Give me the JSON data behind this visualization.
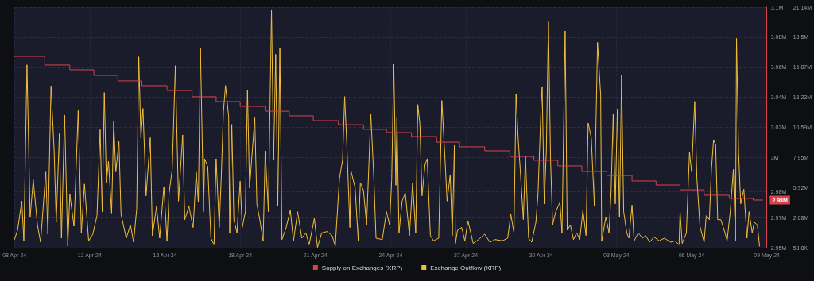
{
  "chart_data": {
    "type": "line",
    "legend": "bottom",
    "grid": true,
    "marker": "none",
    "xlim": [
      "--04-09T00:00",
      "--05-09T00:00"
    ],
    "xticks": [
      {
        "value": "--04-09T00:00",
        "label": "08 Apr 24"
      },
      {
        "value": "--04-12T00:00",
        "label": "12 Apr 24"
      },
      {
        "value": "--04-15T00:00",
        "label": "15 Apr 24"
      },
      {
        "value": "--04-18T00:00",
        "label": "18 Apr 24"
      },
      {
        "value": "--04-21T00:00",
        "label": "21 Apr 24"
      },
      {
        "value": "--04-24T00:00",
        "label": "24 Apr 24"
      },
      {
        "value": "--04-27T00:00",
        "label": "27 Apr 24"
      },
      {
        "value": "--04-30T00:00",
        "label": "30 Apr 24"
      },
      {
        "value": "--05-03T00:00",
        "label": "03 May 24"
      },
      {
        "value": "--05-06T00:00",
        "label": "06 May 24"
      },
      {
        "value": "--05-09T00:00",
        "label": "09 May 24"
      }
    ],
    "ylim": [
      2950000,
      3100000
    ],
    "yticks": [
      {
        "value": 2950000,
        "label": "2.95M"
      },
      {
        "value": 2968750,
        "label": "2.97M"
      },
      {
        "value": 2985000,
        "label": "2.98M"
      },
      {
        "value": 3006250,
        "label": "3M"
      },
      {
        "value": 3025000,
        "label": "3.02M"
      },
      {
        "value": 3043750,
        "label": "3.04M"
      },
      {
        "value": 3062500,
        "label": "3.06M"
      },
      {
        "value": 3081250,
        "label": "3.08M"
      },
      {
        "value": 3100000,
        "label": "3.1M"
      }
    ],
    "y2lim": [
      53800,
      21140000
    ],
    "y2ticks": [
      {
        "value": 53800,
        "label": "53.8K"
      },
      {
        "value": 2685000,
        "label": "2.68M"
      },
      {
        "value": 5325000,
        "label": "5.32M"
      },
      {
        "value": 7955000,
        "label": "7.95M"
      },
      {
        "value": 10595000,
        "label": "10.59M"
      },
      {
        "value": 13232700,
        "label": "13.23M"
      },
      {
        "value": 15868500,
        "label": "15.87M"
      },
      {
        "value": 18504200,
        "label": "18.5M"
      },
      {
        "value": 21140000,
        "label": "21.14M"
      }
    ],
    "annotations": [
      {
        "text": "2.98M",
        "x": "--05-08T20:00",
        "y": 2979700
      }
    ],
    "series": [
      {
        "name": "Supply on Exchanges (XRP)",
        "type": "step",
        "color": "#d9434e",
        "x": [
          "--04-09T00:00",
          "--04-10T05:00",
          "--04-11T05:00",
          "--04-12T04:00",
          "--04-13T03:00",
          "--04-14T02:00",
          "--04-15T02:00",
          "--04-16T02:00",
          "--04-17T01:00",
          "--04-18T00:00",
          "--04-19T00:00",
          "--04-19T23:00",
          "--04-20T22:00",
          "--04-21T22:00",
          "--04-22T22:00",
          "--04-23T20:00",
          "--04-24T20:00",
          "--04-25T20:00",
          "--04-26T18:00",
          "--04-27T18:00",
          "--04-28T18:00",
          "--04-29T17:00",
          "--04-30T16:00",
          "--05-01T15:00",
          "--05-02T15:00",
          "--05-03T15:00",
          "--05-04T14:00",
          "--05-05T13:00",
          "--05-06T12:00",
          "--05-07T12:00",
          "--05-08T11:00",
          "--05-08T20:00"
        ],
        "values": [
          3069300,
          3063900,
          3060900,
          3057400,
          3054000,
          3051000,
          3048000,
          3044100,
          3041100,
          3038100,
          3035100,
          3032200,
          3029200,
          3026700,
          3023800,
          3021800,
          3019300,
          3015800,
          3012900,
          3010400,
          3006900,
          3004500,
          3001000,
          2997500,
          2995000,
          2991600,
          2989100,
          2986100,
          2982700,
          2980700,
          2979700,
          2979700
        ]
      },
      {
        "name": "Exchange Outflow (XRP)",
        "type": "line",
        "axis": "y2",
        "color": "#f2bf3a",
        "x": [
          "--04-09T00:00",
          "--04-09T03:00",
          "--04-09T07:00",
          "--04-09T09:00",
          "--04-09T12:00",
          "--04-09T15:00",
          "--04-09T18:00",
          "--04-09T22:00",
          "--04-10T01:00",
          "--04-10T06:00",
          "--04-10T08:00",
          "--04-10T11:00",
          "--04-10T14:00",
          "--04-10T16:00",
          "--04-10T19:00",
          "--04-10T21:00",
          "--04-11T00:00",
          "--04-11T03:00",
          "--04-11T05:00",
          "--04-11T09:00",
          "--04-11T13:00",
          "--04-11T16:00",
          "--04-11T19:00",
          "--04-11T23:00",
          "--04-12T03:00",
          "--04-12T07:00",
          "--04-12T10:00",
          "--04-12T12:00",
          "--04-12T14:00",
          "--04-12T16:00",
          "--04-12T18:00",
          "--04-12T21:00",
          "--04-12T23:00",
          "--04-13T01:00",
          "--04-13T04:00",
          "--04-13T06:00",
          "--04-13T11:00",
          "--04-13T15:00",
          "--04-13T18:00",
          "--04-13T21:00",
          "--04-13T23:00",
          "--04-14T01:00",
          "--04-14T03:00",
          "--04-14T06:00",
          "--04-14T10:00",
          "--04-14T12:00",
          "--04-14T16:00",
          "--04-14T19:00",
          "--04-14T23:00",
          "--04-15T02:00",
          "--04-15T04:00",
          "--04-15T07:00",
          "--04-15T08:00",
          "--04-15T10:00",
          "--04-15T13:00",
          "--04-15T17:00",
          "--04-15T19:00",
          "--04-15T23:00",
          "--04-16T03:00",
          "--04-16T06:00",
          "--04-16T08:00",
          "--04-16T10:00",
          "--04-16T13:00",
          "--04-16T14:00",
          "--04-16T17:00",
          "--04-16T20:00",
          "--04-16T23:00",
          "--04-17T01:00",
          "--04-17T04:00",
          "--04-17T06:00",
          "--04-17T08:00",
          "--04-17T10:00",
          "--04-17T13:00",
          "--04-17T14:00",
          "--04-17T16:00",
          "--04-17T18:00",
          "--04-17T21:00",
          "--04-18T00:00",
          "--04-18T02:00",
          "--04-18T05:00",
          "--04-18T07:00",
          "--04-18T09:00",
          "--04-18T14:00",
          "--04-18T16:00",
          "--04-18T19:00",
          "--04-18T22:00",
          "--04-19T00:00",
          "--04-19T03:00",
          "--04-19T06:00",
          "--04-19T08:00",
          "--04-19T10:00",
          "--04-19T12:00",
          "--04-19T14:00",
          "--04-19T16:00",
          "--04-19T20:00",
          "--04-20T00:00",
          "--04-20T03:00",
          "--04-20T07:00",
          "--04-20T11:00",
          "--04-20T15:00",
          "--04-20T18:00",
          "--04-20T23:00",
          "--04-21T02:00",
          "--04-21T06:00",
          "--04-21T11:00",
          "--04-21T16:00",
          "--04-21T19:00",
          "--04-21T23:00",
          "--04-22T02:00",
          "--04-22T04:00",
          "--04-22T06:00",
          "--04-22T09:00",
          "--04-22T10:00",
          "--04-22T14:00",
          "--04-22T17:00",
          "--04-22T19:00",
          "--04-22T22:00",
          "--04-23T01:00",
          "--04-23T05:00",
          "--04-23T08:00",
          "--04-23T10:00",
          "--04-23T16:00",
          "--04-23T20:00",
          "--04-23T23:00",
          "--04-24T01:00",
          "--04-24T03:00",
          "--04-24T05:00",
          "--04-24T06:00",
          "--04-24T08:00",
          "--04-24T11:00",
          "--04-24T14:00",
          "--04-24T18:00",
          "--04-24T21:00",
          "--04-25T00:00",
          "--04-25T02:00",
          "--04-25T04:00",
          "--04-25T06:00",
          "--04-25T09:00",
          "--04-25T11:00",
          "--04-25T14:00",
          "--04-25T17:00",
          "--04-25T22:00",
          "--04-26T01:00",
          "--04-26T04:00",
          "--04-26T06:00",
          "--04-26T09:00",
          "--04-26T11:00",
          "--04-26T13:00",
          "--04-26T14:00",
          "--04-26T16:00",
          "--04-26T20:00",
          "--04-26T23:00",
          "--04-27T02:00",
          "--04-27T07:00",
          "--04-27T12:00",
          "--04-27T18:00",
          "--04-27T23:00",
          "--04-28T04:00",
          "--04-28T11:00",
          "--04-28T16:00",
          "--04-28T19:00",
          "--04-28T22:00",
          "--04-29T00:00",
          "--04-29T02:00",
          "--04-29T04:00",
          "--04-29T07:00",
          "--04-29T09:00",
          "--04-29T12:00",
          "--04-29T15:00",
          "--04-29T19:00",
          "--04-29T21:00",
          "--04-30T00:00",
          "--04-30T01:00",
          "--04-30T03:00",
          "--04-30T05:00",
          "--04-30T07:00",
          "--04-30T09:00",
          "--04-30T11:00",
          "--04-30T14:00",
          "--04-30T18:00",
          "--04-30T20:00",
          "--04-30T23:00",
          "--05-01T01:00",
          "--05-01T04:00",
          "--05-01T07:00",
          "--05-01T10:00",
          "--05-01T13:00",
          "--05-01T16:00",
          "--05-01T19:00",
          "--05-01T21:00",
          "--05-02T00:00",
          "--05-02T03:00",
          "--05-02T06:00",
          "--05-02T09:00",
          "--05-02T10:00",
          "--05-02T14:00",
          "--05-02T17:00",
          "--05-02T19:00",
          "--05-02T21:00",
          "--05-02T23:00",
          "--05-03T01:00",
          "--05-03T03:00",
          "--05-03T05:00",
          "--05-03T07:00",
          "--05-03T10:00",
          "--05-03T12:00",
          "--05-03T15:00",
          "--05-03T17:00",
          "--05-03T21:00",
          "--05-04T01:00",
          "--05-04T04:00",
          "--05-04T08:00",
          "--05-04T12:00",
          "--05-04T17:00",
          "--05-04T22:00",
          "--05-05T04:00",
          "--05-05T08:00",
          "--05-05T12:00",
          "--05-05T13:00",
          "--05-05T15:00",
          "--05-05T19:00",
          "--05-05T22:00",
          "--05-06T00:00",
          "--05-06T03:00",
          "--05-06T05:00",
          "--05-06T08:00",
          "--05-06T12:00",
          "--05-06T14:00",
          "--05-06T17:00",
          "--05-06T19:00",
          "--05-06T21:00",
          "--05-06T23:00",
          "--05-07T01:00",
          "--05-07T04:00",
          "--05-07T08:00",
          "--05-07T10:00",
          "--05-07T13:00",
          "--05-07T16:00",
          "--05-07T18:00",
          "--05-07T19:00",
          "--05-07T21:00",
          "--05-07T23:00",
          "--05-08T02:00",
          "--05-08T05:00",
          "--05-08T07:00",
          "--05-08T10:00",
          "--05-08T12:00",
          "--05-08T15:00",
          "--05-08T17:00"
        ],
        "values": [
          770000,
          1590000,
          4140000,
          660000,
          16080000,
          2740000,
          5990000,
          2050000,
          540000,
          6690000,
          1240000,
          14230000,
          8540000,
          2280000,
          10050000,
          890000,
          11680000,
          190000,
          4720000,
          1930000,
          12070000,
          1350000,
          5640000,
          660000,
          1240000,
          2860000,
          10400000,
          3210000,
          13650000,
          5760000,
          7620000,
          3090000,
          11100000,
          6690000,
          9360000,
          2980000,
          890000,
          2050000,
          540000,
          3440000,
          16780000,
          9700000,
          12260000,
          4600000,
          9700000,
          1120000,
          3670000,
          890000,
          5410000,
          660000,
          4830000,
          6920000,
          9940000,
          16010000,
          4140000,
          9940000,
          2510000,
          3670000,
          1820000,
          6690000,
          4020000,
          17520000,
          3210000,
          7850000,
          7150000,
          890000,
          310000,
          7850000,
          1820000,
          6460000,
          12020000,
          14270000,
          11560000,
          1350000,
          10860000,
          2510000,
          1350000,
          5880000,
          1820000,
          3210000,
          13880000,
          5300000,
          11440000,
          3900000,
          2400000,
          660000,
          8540000,
          3210000,
          20890000,
          7730000,
          17010000,
          3670000,
          17540000,
          770000,
          1820000,
          3320000,
          660000,
          3210000,
          890000,
          1350000,
          310000,
          2630000,
          80000,
          1350000,
          1470000,
          1120000,
          190000,
          6110000,
          7730000,
          13300000,
          9240000,
          1820000,
          6800000,
          5300000,
          660000,
          5760000,
          5060000,
          2050000,
          11790000,
          5990000,
          890000,
          770000,
          3210000,
          2050000,
          5990000,
          16200000,
          5530000,
          11440000,
          1350000,
          4140000,
          4830000,
          1120000,
          5760000,
          1350000,
          12600000,
          10860000,
          4600000,
          7380000,
          7850000,
          1120000,
          660000,
          890000,
          12950000,
          7850000,
          4140000,
          6460000,
          1120000,
          9010000,
          430000,
          1590000,
          1820000,
          660000,
          2400000,
          430000,
          770000,
          1240000,
          540000,
          770000,
          660000,
          890000,
          2980000,
          1350000,
          13530000,
          9700000,
          6920000,
          2510000,
          8080000,
          890000,
          540000,
          2280000,
          4720000,
          12490000,
          14110000,
          3900000,
          8540000,
          19860000,
          7850000,
          2050000,
          3210000,
          4020000,
          1350000,
          19050000,
          1590000,
          2050000,
          770000,
          1350000,
          770000,
          3320000,
          1120000,
          10980000,
          9700000,
          3670000,
          18050000,
          13420000,
          660000,
          2740000,
          1350000,
          5060000,
          11750000,
          3900000,
          12210000,
          2740000,
          15160000,
          3210000,
          1350000,
          890000,
          3790000,
          660000,
          1350000,
          890000,
          1120000,
          540000,
          1000000,
          660000,
          890000,
          540000,
          660000,
          310000,
          3210000,
          430000,
          1350000,
          8430000,
          6690000,
          12880000,
          6220000,
          1930000,
          540000,
          2860000,
          2510000,
          6920000,
          9470000,
          9120000,
          2510000,
          2510000,
          1350000,
          660000,
          3210000,
          6920000,
          660000,
          18400000,
          8310000,
          3900000,
          5180000,
          890000,
          3210000,
          1350000,
          2280000,
          2050000,
          190000
        ]
      }
    ]
  }
}
